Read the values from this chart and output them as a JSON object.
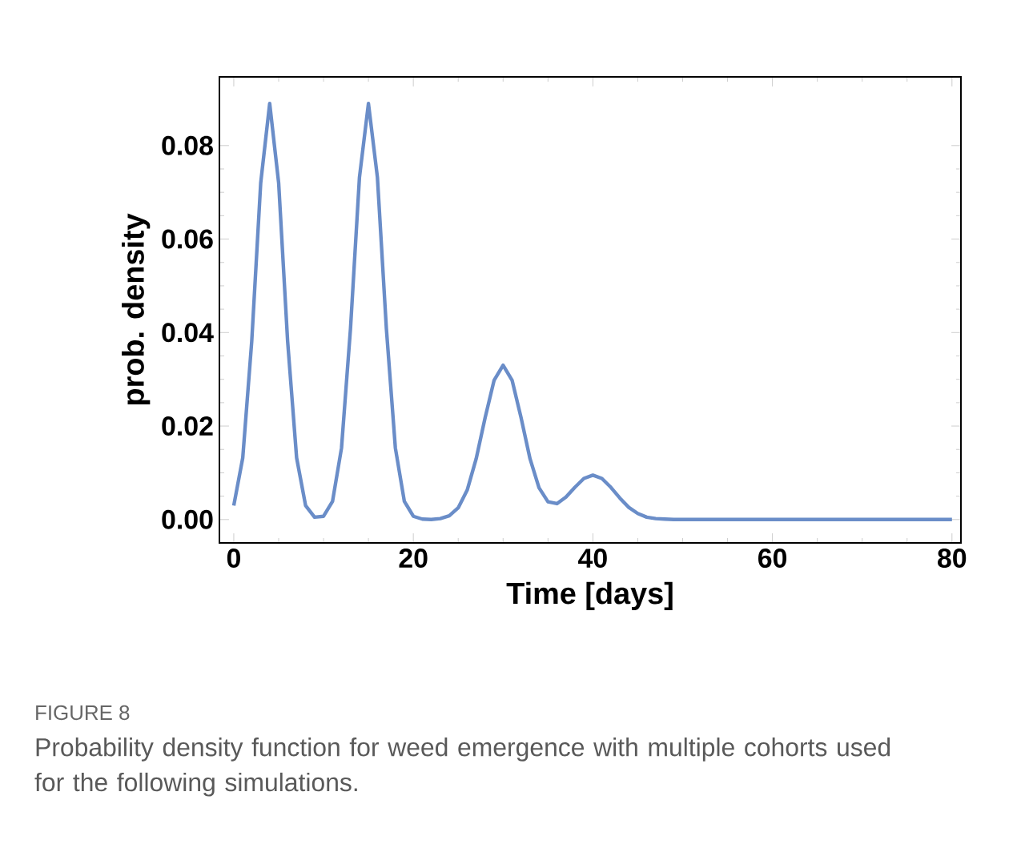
{
  "chart_data": {
    "type": "line",
    "xlabel": "Time [days]",
    "ylabel": "prob. density",
    "annotations": [
      "FIGURE 8",
      "Probability density function for weed emergence with multiple cohorts used for the following simulations."
    ],
    "xlim": [
      -1.6,
      81
    ],
    "ylim": [
      -0.005,
      0.0947
    ],
    "xticks": [
      0,
      20,
      40,
      60,
      80
    ],
    "yticks": [
      {
        "value": 0,
        "label": "0.00"
      },
      {
        "value": 0.02,
        "label": "0.02"
      },
      {
        "value": 0.04,
        "label": "0.04"
      },
      {
        "value": 0.06,
        "label": "0.06"
      },
      {
        "value": 0.08,
        "label": "0.08"
      }
    ],
    "grid": false,
    "marker": "none",
    "line_style": "solid",
    "series": [
      {
        "color": "#6a8dc8",
        "x": [
          0,
          1,
          2,
          3,
          4,
          5,
          6,
          7,
          8,
          9,
          10,
          11,
          12,
          13,
          14,
          15,
          16,
          17,
          18,
          19,
          20,
          21,
          22,
          23,
          24,
          25,
          26,
          27,
          28,
          29,
          30,
          31,
          32,
          33,
          34,
          35,
          36,
          37,
          38,
          39,
          40,
          41,
          42,
          43,
          44,
          45,
          46,
          47,
          48,
          49,
          50,
          60,
          70,
          80
        ],
        "values": [
          0.003,
          0.0132,
          0.0381,
          0.072,
          0.089,
          0.072,
          0.0381,
          0.0132,
          0.003,
          0.0005,
          0.0007,
          0.0039,
          0.0153,
          0.0408,
          0.0732,
          0.089,
          0.0732,
          0.0408,
          0.0153,
          0.0039,
          0.0007,
          0.0001,
          0,
          0.0002,
          0.0008,
          0.0025,
          0.0063,
          0.013,
          0.0218,
          0.0298,
          0.033,
          0.0298,
          0.0218,
          0.013,
          0.0068,
          0.0038,
          0.0034,
          0.0048,
          0.0069,
          0.0088,
          0.0095,
          0.0088,
          0.0069,
          0.0046,
          0.0026,
          0.0013,
          0.0005,
          0.0002,
          0.0001,
          0,
          0,
          0,
          0,
          0
        ]
      }
    ]
  }
}
